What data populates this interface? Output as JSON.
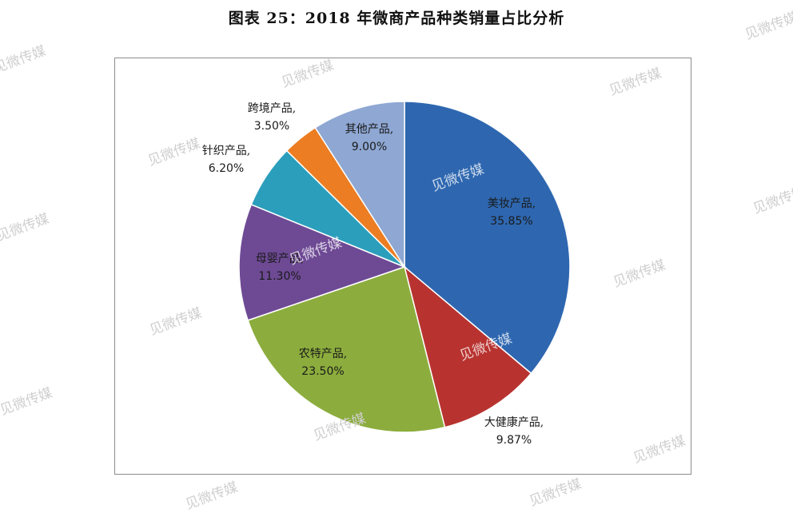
{
  "title": "图表 25：2018 年微商产品种类销量占比分析",
  "watermark": "见微传媒",
  "chart_data": {
    "type": "pie",
    "start": "12 o'clock",
    "direction": "clockwise",
    "slices": [
      {
        "label": "美妆产品,",
        "value": 35.85,
        "value_text": "35.85%",
        "color": "#2e67b0"
      },
      {
        "label": "大健康产品,",
        "value": 9.87,
        "value_text": "9.87%",
        "color": "#b83330"
      },
      {
        "label": "农特产品,",
        "value": 23.5,
        "value_text": "23.50%",
        "color": "#8cad3d"
      },
      {
        "label": "母婴产品,",
        "value": 11.3,
        "value_text": "11.30%",
        "color": "#6e4a95"
      },
      {
        "label": "针织产品,",
        "value": 6.2,
        "value_text": "6.20%",
        "color": "#2b9ebb"
      },
      {
        "label": "跨境产品,",
        "value": 3.5,
        "value_text": "3.50%",
        "color": "#ec7d22"
      },
      {
        "label": "其他产品,",
        "value": 9.0,
        "value_text": "9.00%",
        "color": "#8ea7d3"
      }
    ]
  }
}
